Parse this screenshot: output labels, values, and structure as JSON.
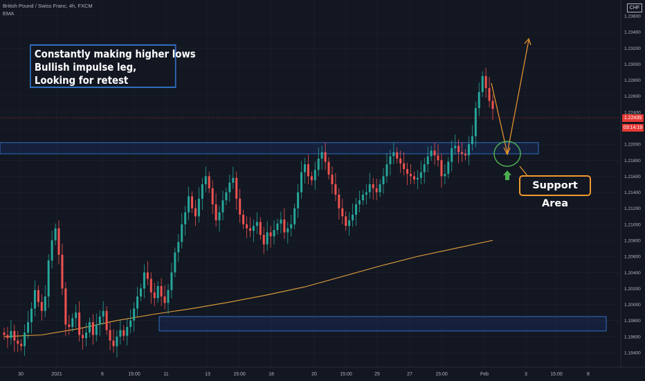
{
  "header": {
    "symbol_line": "British Pound / Swiss Franc, 4h, FXCM",
    "indicator": "EMA"
  },
  "currency_button": "CHF",
  "annotation": {
    "lines": [
      "Constantly making higher lows",
      "Bullish impulse leg,",
      "Looking for retest"
    ]
  },
  "support_label": "Support Area",
  "last_price": "1.22435",
  "countdown": "03:14:19",
  "colors": {
    "background": "#131722",
    "up": "#26a69a",
    "down": "#ef5350",
    "ema": "#e8a33c",
    "zone_border": "#2f6fc0",
    "projection": "#f09a30",
    "circle": "#4caf50"
  },
  "chart_data": {
    "type": "candlestick",
    "instrument": "GBP/CHF",
    "timeframe": "4h",
    "y_axis_ticks": [
      "1.23600",
      "1.23400",
      "1.23200",
      "1.23000",
      "1.22800",
      "1.22600",
      "1.22400",
      "1.22200",
      "1.22000",
      "1.21800",
      "1.21600",
      "1.21400",
      "1.21200",
      "1.21000",
      "1.20800",
      "1.20600",
      "1.20400",
      "1.20200",
      "1.20000",
      "1.19800",
      "1.19600",
      "1.19400"
    ],
    "ylim": [
      1.1925,
      1.2375
    ],
    "x_axis_ticks": [
      "30",
      "2021",
      "6",
      "15:00",
      "11",
      "13",
      "15:00",
      "18",
      "20",
      "15:00",
      "25",
      "27",
      "15:00",
      "Feb",
      "3",
      "15:00",
      "8"
    ],
    "closes": [
      1.1962,
      1.1958,
      1.1967,
      1.1955,
      1.1951,
      1.1948,
      1.1965,
      1.1978,
      1.1995,
      1.2018,
      1.2003,
      1.1992,
      1.201,
      1.2055,
      1.208,
      1.2095,
      1.2062,
      1.202,
      1.1975,
      1.1972,
      1.1983,
      1.199,
      1.1962,
      1.1958,
      1.1965,
      1.1978,
      1.1962,
      1.1975,
      1.1985,
      1.1992,
      1.1968,
      1.1955,
      1.1948,
      1.196,
      1.1968,
      1.1961,
      1.1972,
      1.198,
      1.1995,
      1.201,
      1.202,
      1.204,
      1.2032,
      1.2015,
      1.2008,
      1.2023,
      1.201,
      1.2002,
      1.2018,
      1.204,
      1.2065,
      1.2078,
      1.21,
      1.2115,
      1.2135,
      1.212,
      1.211,
      1.2132,
      1.215,
      1.216,
      1.2145,
      1.2125,
      1.2105,
      1.2115,
      1.213,
      1.214,
      1.2152,
      1.2158,
      1.2132,
      1.2112,
      1.21,
      1.2095,
      1.2092,
      1.2098,
      1.2103,
      1.2087,
      1.2075,
      1.209,
      1.2085,
      1.2093,
      1.2101,
      1.2106,
      1.209,
      1.2095,
      1.21,
      1.212,
      1.214,
      1.2165,
      1.2175,
      1.216,
      1.2155,
      1.2168,
      1.2182,
      1.219,
      1.2178,
      1.2162,
      1.215,
      1.2137,
      1.212,
      1.211,
      1.2098,
      1.2105,
      1.2112,
      1.2125,
      1.213,
      1.2137,
      1.214,
      1.215,
      1.2145,
      1.214,
      1.215,
      1.216,
      1.2175,
      1.2185,
      1.219,
      1.2182,
      1.2176,
      1.2169,
      1.2163,
      1.216,
      1.2156,
      1.2158,
      1.2165,
      1.2175,
      1.2185,
      1.2192,
      1.2186,
      1.218,
      1.216,
      1.2163,
      1.2178,
      1.2195,
      1.2198,
      1.219,
      1.2188,
      1.2186,
      1.22,
      1.221,
      1.2245,
      1.2265,
      1.2285,
      1.227,
      1.2254,
      1.2244
    ],
    "ema_values": [
      1.196,
      1.1962,
      1.197,
      1.198,
      1.1988,
      1.1995,
      1.2003,
      1.2012,
      1.2022,
      1.2035,
      1.2048,
      1.206,
      1.207,
      1.208
    ],
    "annotations": {
      "resistance_turned_support_zone": [
        1.2188,
        1.2202
      ],
      "lower_demand_zone": [
        1.1967,
        1.1985
      ]
    }
  }
}
